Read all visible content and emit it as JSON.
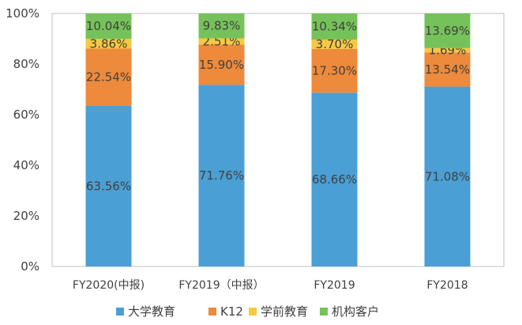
{
  "chart_data": {
    "type": "bar",
    "stacked": true,
    "percent": true,
    "categories": [
      "FY2020(中报)",
      "FY2019（中报）",
      "FY2019",
      "FY2018"
    ],
    "series": [
      {
        "name": "大学教育",
        "color": "#4a9fd4",
        "values": [
          63.56,
          71.76,
          68.66,
          71.08
        ],
        "labels": [
          "63.56%",
          "71.76%",
          "68.66%",
          "71.08%"
        ]
      },
      {
        "name": "K12",
        "color": "#ee8a3c",
        "values": [
          22.54,
          15.9,
          17.3,
          13.54
        ],
        "labels": [
          "22.54%",
          "15.90%",
          "17.30%",
          "13.54%"
        ]
      },
      {
        "name": "学前教育",
        "color": "#f7c843",
        "values": [
          3.86,
          2.51,
          3.7,
          1.69
        ],
        "labels": [
          "3.86%",
          "2.51%",
          "3.70%",
          "1.69%"
        ]
      },
      {
        "name": "机构客户",
        "color": "#76c25a",
        "values": [
          10.04,
          9.83,
          10.34,
          13.69
        ],
        "labels": [
          "10.04%",
          "9.83%",
          "10.34%",
          "13.69%"
        ]
      }
    ],
    "yticks": [
      "0%",
      "20%",
      "40%",
      "60%",
      "80%",
      "100%"
    ],
    "ylim": [
      0,
      100
    ],
    "grid": false,
    "legend": "bottom"
  }
}
